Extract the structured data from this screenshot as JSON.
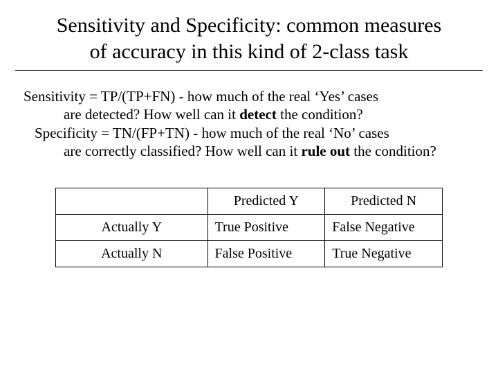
{
  "title_line1": "Sensitivity and Specificity: common measures",
  "title_line2": "of accuracy in this kind of 2-class task",
  "def": {
    "sens_l1_a": "Sensitivity =   TP/(TP+FN)   -  how much of the real ‘Yes’ cases",
    "sens_l2_a": "are detected?       How well can it ",
    "sens_l2_b": "detect",
    "sens_l2_c": " the condition?",
    "spec_l1_a": "Specificity  =  TN/(FP+TN)   -   how much of the real  ‘No’ cases",
    "spec_l2_a": "are correctly classified? How well can it ",
    "spec_l2_b": "rule out",
    "spec_l2_c": " the condition?"
  },
  "table": {
    "columns": [
      "Predicted Y",
      "Predicted N"
    ],
    "rows": [
      {
        "header": "Actually Y",
        "cells": [
          "True Positive",
          "False Negative"
        ]
      },
      {
        "header": "Actually N",
        "cells": [
          "False Positive",
          "True Negative"
        ]
      }
    ],
    "border_color": "#000000",
    "background_color": "#ffffff",
    "font_size_pt": 15
  },
  "colors": {
    "background": "#ffffff",
    "text": "#000000",
    "rule": "#000000"
  },
  "typography": {
    "family": "Times New Roman",
    "title_size_pt": 22,
    "body_size_pt": 16
  }
}
